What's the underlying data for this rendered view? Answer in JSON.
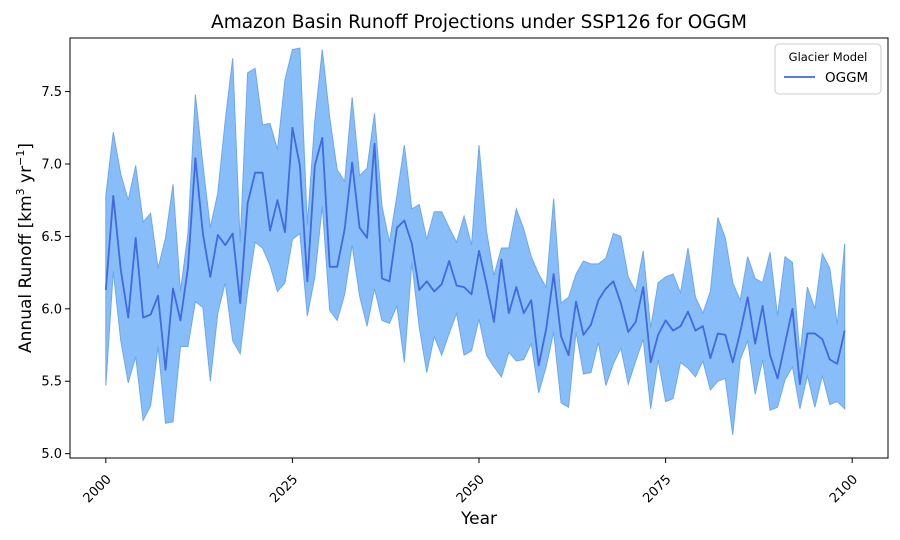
{
  "chart_data": {
    "type": "area",
    "title": "Amazon Basin Runoff Projections under SSP126 for OGGM",
    "xlabel": "Year",
    "ylabel_main": "Annual Runoff [km",
    "ylabel_sup1": "3",
    "ylabel_mid": " yr",
    "ylabel_sup2": "−1",
    "ylabel_end": "]",
    "xlim": [
      1995.2,
      2104.8
    ],
    "ylim": [
      4.97,
      7.87
    ],
    "x_ticks": [
      2000,
      2025,
      2050,
      2075,
      2100
    ],
    "x_tick_labels": [
      "2000",
      "2025",
      "2050",
      "2075",
      "2100"
    ],
    "y_ticks": [
      5.0,
      5.5,
      6.0,
      6.5,
      7.0,
      7.5
    ],
    "y_tick_labels": [
      "5.0",
      "5.5",
      "6.0",
      "6.5",
      "7.0",
      "7.5"
    ],
    "grid": false,
    "legend": {
      "title": "Glacier Model",
      "position": "top-right",
      "entries": [
        "OGGM"
      ]
    },
    "colors": {
      "line": "#4169e1",
      "band_fill": "#87bdf8",
      "band_edge": "#6fa7ec"
    },
    "x": [
      2000,
      2001,
      2002,
      2003,
      2004,
      2005,
      2006,
      2007,
      2008,
      2009,
      2010,
      2011,
      2012,
      2013,
      2014,
      2015,
      2016,
      2017,
      2018,
      2019,
      2020,
      2021,
      2022,
      2023,
      2024,
      2025,
      2026,
      2027,
      2028,
      2029,
      2030,
      2031,
      2032,
      2033,
      2034,
      2035,
      2036,
      2037,
      2038,
      2039,
      2040,
      2041,
      2042,
      2043,
      2044,
      2045,
      2046,
      2047,
      2048,
      2049,
      2050,
      2051,
      2052,
      2053,
      2054,
      2055,
      2056,
      2057,
      2058,
      2059,
      2060,
      2061,
      2062,
      2063,
      2064,
      2065,
      2066,
      2067,
      2068,
      2069,
      2070,
      2071,
      2072,
      2073,
      2074,
      2075,
      2076,
      2077,
      2078,
      2079,
      2080,
      2081,
      2082,
      2083,
      2084,
      2085,
      2086,
      2087,
      2088,
      2089,
      2090,
      2091,
      2092,
      2093,
      2094,
      2095,
      2096,
      2097,
      2098,
      2099
    ],
    "series": [
      {
        "name": "OGGM",
        "values": [
          6.13,
          6.78,
          6.27,
          5.94,
          6.49,
          5.94,
          5.96,
          6.09,
          5.58,
          6.14,
          5.92,
          6.28,
          7.04,
          6.52,
          6.22,
          6.51,
          6.44,
          6.52,
          6.04,
          6.73,
          6.94,
          6.94,
          6.54,
          6.75,
          6.53,
          7.25,
          6.99,
          6.19,
          6.99,
          7.18,
          6.29,
          6.29,
          6.55,
          7.01,
          6.56,
          6.49,
          7.14,
          6.21,
          6.19,
          6.56,
          6.61,
          6.45,
          6.13,
          6.19,
          6.12,
          6.17,
          6.33,
          6.16,
          6.15,
          6.1,
          6.4,
          6.17,
          5.91,
          6.34,
          5.97,
          6.15,
          5.97,
          6.06,
          5.61,
          5.86,
          6.24,
          5.81,
          5.68,
          6.05,
          5.82,
          5.89,
          6.06,
          6.14,
          6.19,
          6.04,
          5.84,
          5.91,
          6.15,
          5.63,
          5.82,
          5.92,
          5.85,
          5.88,
          5.98,
          5.85,
          5.88,
          5.66,
          5.83,
          5.82,
          5.63,
          5.84,
          6.08,
          5.76,
          6.02,
          5.68,
          5.52,
          5.76,
          6.0,
          5.48,
          5.83,
          5.83,
          5.79,
          5.65,
          5.62,
          5.85
        ]
      }
    ],
    "band_upper": [
      6.78,
      7.22,
      6.93,
      6.75,
      6.99,
      6.6,
      6.66,
      6.28,
      6.49,
      6.86,
      6.12,
      6.52,
      7.48,
      7.0,
      6.56,
      6.8,
      7.3,
      7.73,
      6.46,
      7.63,
      7.66,
      7.27,
      7.28,
      7.1,
      7.58,
      7.79,
      7.8,
      6.58,
      7.3,
      7.79,
      7.32,
      6.96,
      6.88,
      7.46,
      6.92,
      6.97,
      7.35,
      6.71,
      6.46,
      6.78,
      7.13,
      6.69,
      6.72,
      6.48,
      6.67,
      6.67,
      6.56,
      6.46,
      6.64,
      6.44,
      7.13,
      6.54,
      6.23,
      6.42,
      6.42,
      6.69,
      6.55,
      6.36,
      6.24,
      6.15,
      6.76,
      6.04,
      6.08,
      6.24,
      6.33,
      6.31,
      6.31,
      6.35,
      6.52,
      6.5,
      6.22,
      6.12,
      6.4,
      5.87,
      6.18,
      6.22,
      6.24,
      6.11,
      6.42,
      6.08,
      5.97,
      6.12,
      6.63,
      6.49,
      6.18,
      6.06,
      6.36,
      6.21,
      6.18,
      6.39,
      5.95,
      6.36,
      6.32,
      5.68,
      6.15,
      6.0,
      6.38,
      6.28,
      5.89,
      6.45
    ],
    "band_lower": [
      5.47,
      6.26,
      5.78,
      5.49,
      5.67,
      5.23,
      5.33,
      5.74,
      5.21,
      5.22,
      5.74,
      5.74,
      6.05,
      6.01,
      5.5,
      5.97,
      6.18,
      5.78,
      5.69,
      6.12,
      6.46,
      6.42,
      6.3,
      6.12,
      6.18,
      6.48,
      6.52,
      5.95,
      6.22,
      6.71,
      5.99,
      5.92,
      6.1,
      6.44,
      6.09,
      5.88,
      6.14,
      5.92,
      5.9,
      6.02,
      5.63,
      6.32,
      5.87,
      5.56,
      5.81,
      5.68,
      5.83,
      5.97,
      5.68,
      5.71,
      5.93,
      5.68,
      5.6,
      5.53,
      5.7,
      5.64,
      5.65,
      5.76,
      5.42,
      5.6,
      5.84,
      5.35,
      5.32,
      5.84,
      5.55,
      5.56,
      5.77,
      5.47,
      5.62,
      5.73,
      5.48,
      5.64,
      5.79,
      5.31,
      5.65,
      5.36,
      5.38,
      5.63,
      5.59,
      5.53,
      5.64,
      5.44,
      5.5,
      5.52,
      5.13,
      5.65,
      5.78,
      5.41,
      5.65,
      5.3,
      5.32,
      5.51,
      5.6,
      5.31,
      5.54,
      5.32,
      5.54,
      5.34,
      5.36,
      5.31
    ]
  }
}
